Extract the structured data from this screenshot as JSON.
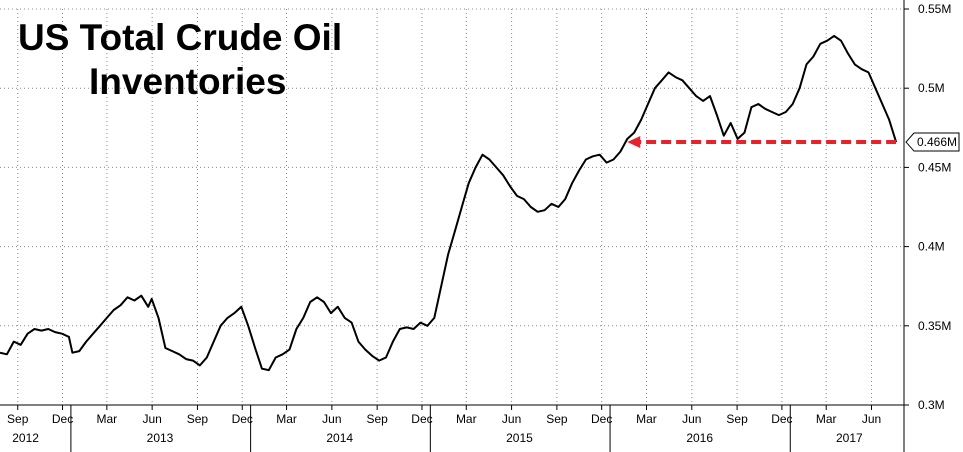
{
  "chart_data": {
    "type": "line",
    "title_lines": [
      "US Total Crude Oil",
      "Inventories"
    ],
    "xlabel": "",
    "ylabel": "",
    "ylim": [
      0.3,
      0.55
    ],
    "yticks": [
      {
        "value": 0.3,
        "label": "0.3M"
      },
      {
        "value": 0.35,
        "label": "0.35M"
      },
      {
        "value": 0.4,
        "label": "0.4M"
      },
      {
        "value": 0.45,
        "label": "0.45M"
      },
      {
        "value": 0.5,
        "label": "0.5M"
      },
      {
        "value": 0.55,
        "label": "0.55M"
      }
    ],
    "xlim": [
      "2012-08-10",
      "2017-08-20"
    ],
    "month_ticks": [
      {
        "date": "2012-09-15",
        "label": "Sep"
      },
      {
        "date": "2012-12-15",
        "label": "Dec"
      },
      {
        "date": "2013-03-15",
        "label": "Mar"
      },
      {
        "date": "2013-06-15",
        "label": "Jun"
      },
      {
        "date": "2013-09-15",
        "label": "Sep"
      },
      {
        "date": "2013-12-15",
        "label": "Dec"
      },
      {
        "date": "2014-03-15",
        "label": "Mar"
      },
      {
        "date": "2014-06-15",
        "label": "Jun"
      },
      {
        "date": "2014-09-15",
        "label": "Sep"
      },
      {
        "date": "2014-12-15",
        "label": "Dec"
      },
      {
        "date": "2015-03-15",
        "label": "Mar"
      },
      {
        "date": "2015-06-15",
        "label": "Jun"
      },
      {
        "date": "2015-09-15",
        "label": "Sep"
      },
      {
        "date": "2015-12-15",
        "label": "Dec"
      },
      {
        "date": "2016-03-15",
        "label": "Mar"
      },
      {
        "date": "2016-06-15",
        "label": "Jun"
      },
      {
        "date": "2016-09-15",
        "label": "Sep"
      },
      {
        "date": "2016-12-15",
        "label": "Dec"
      },
      {
        "date": "2017-03-15",
        "label": "Mar"
      },
      {
        "date": "2017-06-15",
        "label": "Jun"
      }
    ],
    "year_labels": [
      {
        "date": "2012-10-01",
        "label": "2012"
      },
      {
        "date": "2013-07-01",
        "label": "2013"
      },
      {
        "date": "2014-07-01",
        "label": "2014"
      },
      {
        "date": "2015-07-01",
        "label": "2015"
      },
      {
        "date": "2016-07-01",
        "label": "2016"
      },
      {
        "date": "2017-05-01",
        "label": "2017"
      }
    ],
    "year_dividers": [
      "2013-01-01",
      "2014-01-01",
      "2015-01-01",
      "2016-01-01",
      "2017-01-01"
    ],
    "grid": true,
    "legend": "none",
    "series": [
      {
        "name": "",
        "color": "#000000",
        "points": [
          [
            "2012-08-10",
            0.333
          ],
          [
            "2012-08-24",
            0.332
          ],
          [
            "2012-09-07",
            0.34
          ],
          [
            "2012-09-21",
            0.338
          ],
          [
            "2012-10-05",
            0.345
          ],
          [
            "2012-10-19",
            0.348
          ],
          [
            "2012-11-02",
            0.347
          ],
          [
            "2012-11-16",
            0.348
          ],
          [
            "2012-11-30",
            0.346
          ],
          [
            "2012-12-14",
            0.345
          ],
          [
            "2012-12-28",
            0.343
          ],
          [
            "2013-01-04",
            0.333
          ],
          [
            "2013-01-18",
            0.334
          ],
          [
            "2013-02-01",
            0.34
          ],
          [
            "2013-02-15",
            0.345
          ],
          [
            "2013-03-01",
            0.35
          ],
          [
            "2013-03-15",
            0.355
          ],
          [
            "2013-03-29",
            0.36
          ],
          [
            "2013-04-12",
            0.363
          ],
          [
            "2013-04-26",
            0.368
          ],
          [
            "2013-05-10",
            0.366
          ],
          [
            "2013-05-24",
            0.369
          ],
          [
            "2013-06-07",
            0.362
          ],
          [
            "2013-06-14",
            0.367
          ],
          [
            "2013-06-28",
            0.355
          ],
          [
            "2013-07-12",
            0.336
          ],
          [
            "2013-07-26",
            0.334
          ],
          [
            "2013-08-09",
            0.332
          ],
          [
            "2013-08-23",
            0.329
          ],
          [
            "2013-09-06",
            0.328
          ],
          [
            "2013-09-20",
            0.325
          ],
          [
            "2013-10-04",
            0.33
          ],
          [
            "2013-10-18",
            0.34
          ],
          [
            "2013-11-01",
            0.35
          ],
          [
            "2013-11-15",
            0.355
          ],
          [
            "2013-11-29",
            0.358
          ],
          [
            "2013-12-13",
            0.362
          ],
          [
            "2013-12-27",
            0.35
          ],
          [
            "2014-01-10",
            0.336
          ],
          [
            "2014-01-24",
            0.323
          ],
          [
            "2014-02-07",
            0.322
          ],
          [
            "2014-02-21",
            0.33
          ],
          [
            "2014-03-07",
            0.332
          ],
          [
            "2014-03-21",
            0.335
          ],
          [
            "2014-04-04",
            0.348
          ],
          [
            "2014-04-18",
            0.355
          ],
          [
            "2014-05-02",
            0.365
          ],
          [
            "2014-05-16",
            0.368
          ],
          [
            "2014-05-30",
            0.365
          ],
          [
            "2014-06-13",
            0.358
          ],
          [
            "2014-06-27",
            0.362
          ],
          [
            "2014-07-11",
            0.355
          ],
          [
            "2014-07-25",
            0.352
          ],
          [
            "2014-08-08",
            0.34
          ],
          [
            "2014-08-22",
            0.335
          ],
          [
            "2014-09-05",
            0.331
          ],
          [
            "2014-09-19",
            0.328
          ],
          [
            "2014-10-03",
            0.33
          ],
          [
            "2014-10-17",
            0.34
          ],
          [
            "2014-10-31",
            0.348
          ],
          [
            "2014-11-14",
            0.349
          ],
          [
            "2014-11-28",
            0.348
          ],
          [
            "2014-12-12",
            0.352
          ],
          [
            "2014-12-26",
            0.35
          ],
          [
            "2015-01-09",
            0.355
          ],
          [
            "2015-01-23",
            0.375
          ],
          [
            "2015-02-06",
            0.395
          ],
          [
            "2015-02-20",
            0.41
          ],
          [
            "2015-03-06",
            0.425
          ],
          [
            "2015-03-20",
            0.44
          ],
          [
            "2015-04-03",
            0.45
          ],
          [
            "2015-04-17",
            0.458
          ],
          [
            "2015-05-01",
            0.455
          ],
          [
            "2015-05-15",
            0.45
          ],
          [
            "2015-05-29",
            0.445
          ],
          [
            "2015-06-12",
            0.438
          ],
          [
            "2015-06-26",
            0.432
          ],
          [
            "2015-07-10",
            0.43
          ],
          [
            "2015-07-24",
            0.425
          ],
          [
            "2015-08-07",
            0.422
          ],
          [
            "2015-08-21",
            0.423
          ],
          [
            "2015-09-04",
            0.427
          ],
          [
            "2015-09-18",
            0.425
          ],
          [
            "2015-10-02",
            0.43
          ],
          [
            "2015-10-16",
            0.44
          ],
          [
            "2015-10-30",
            0.448
          ],
          [
            "2015-11-13",
            0.455
          ],
          [
            "2015-11-27",
            0.457
          ],
          [
            "2015-12-11",
            0.458
          ],
          [
            "2015-12-25",
            0.453
          ],
          [
            "2016-01-08",
            0.455
          ],
          [
            "2016-01-22",
            0.46
          ],
          [
            "2016-02-05",
            0.468
          ],
          [
            "2016-02-19",
            0.472
          ],
          [
            "2016-03-04",
            0.48
          ],
          [
            "2016-03-18",
            0.49
          ],
          [
            "2016-04-01",
            0.5
          ],
          [
            "2016-04-15",
            0.505
          ],
          [
            "2016-04-29",
            0.51
          ],
          [
            "2016-05-13",
            0.507
          ],
          [
            "2016-05-27",
            0.505
          ],
          [
            "2016-06-10",
            0.5
          ],
          [
            "2016-06-24",
            0.495
          ],
          [
            "2016-07-08",
            0.492
          ],
          [
            "2016-07-22",
            0.495
          ],
          [
            "2016-08-05",
            0.483
          ],
          [
            "2016-08-19",
            0.47
          ],
          [
            "2016-09-02",
            0.478
          ],
          [
            "2016-09-16",
            0.468
          ],
          [
            "2016-09-30",
            0.472
          ],
          [
            "2016-10-14",
            0.488
          ],
          [
            "2016-10-28",
            0.49
          ],
          [
            "2016-11-11",
            0.487
          ],
          [
            "2016-11-25",
            0.485
          ],
          [
            "2016-12-09",
            0.483
          ],
          [
            "2016-12-23",
            0.485
          ],
          [
            "2017-01-06",
            0.49
          ],
          [
            "2017-01-20",
            0.5
          ],
          [
            "2017-02-03",
            0.515
          ],
          [
            "2017-02-17",
            0.52
          ],
          [
            "2017-03-03",
            0.528
          ],
          [
            "2017-03-17",
            0.53
          ],
          [
            "2017-03-31",
            0.533
          ],
          [
            "2017-04-14",
            0.53
          ],
          [
            "2017-04-28",
            0.522
          ],
          [
            "2017-05-12",
            0.515
          ],
          [
            "2017-05-26",
            0.512
          ],
          [
            "2017-06-09",
            0.51
          ],
          [
            "2017-06-23",
            0.5
          ],
          [
            "2017-07-07",
            0.49
          ],
          [
            "2017-07-21",
            0.48
          ],
          [
            "2017-08-04",
            0.466
          ]
        ]
      }
    ],
    "last_value": {
      "value": 0.466,
      "label": "0.466M"
    },
    "annotation": {
      "type": "arrow",
      "color": "#e8222a",
      "level": 0.466,
      "from": "2017-08-04",
      "to": "2016-02-05"
    }
  }
}
